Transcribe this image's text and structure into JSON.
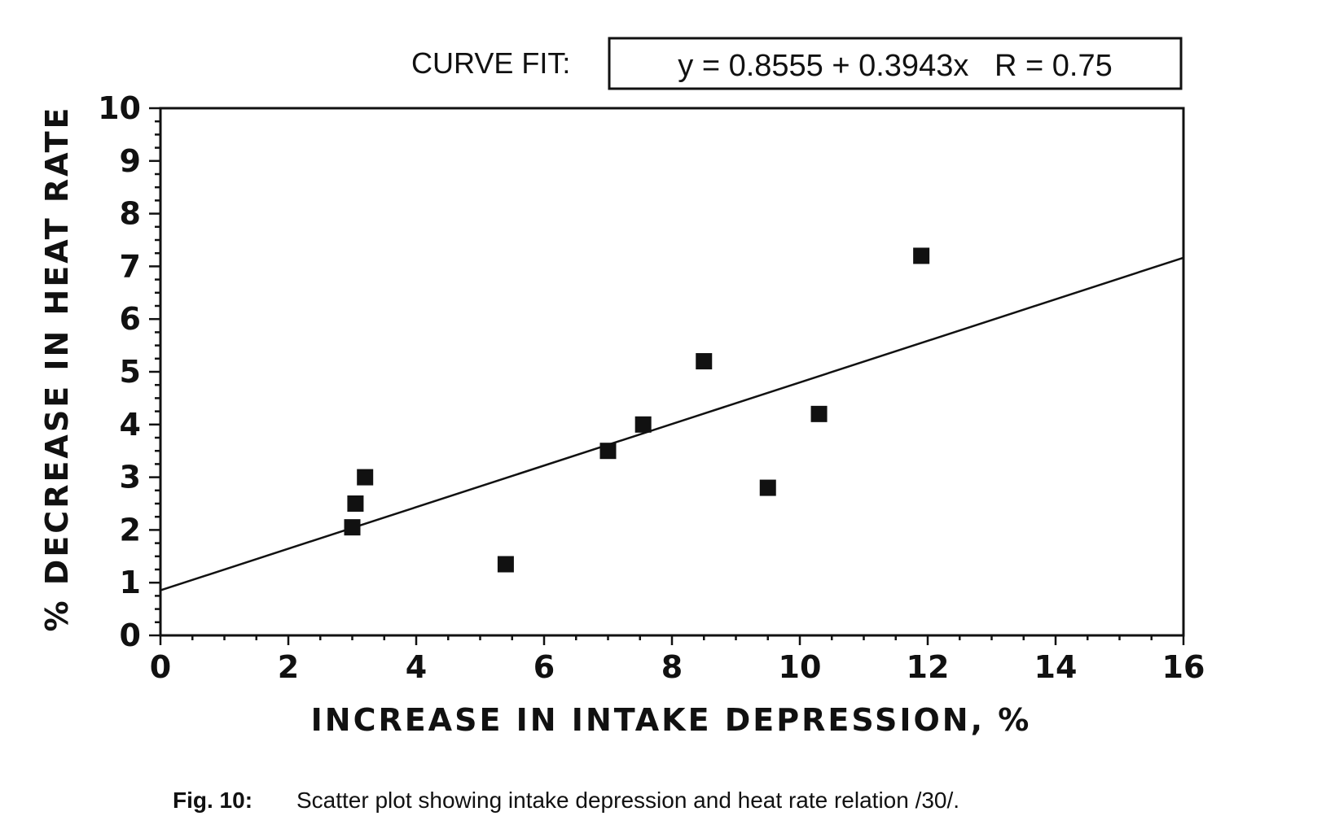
{
  "chart_data": {
    "type": "scatter",
    "title": "",
    "xlabel": "INCREASE IN INTAKE DEPRESSION, %",
    "ylabel": "% DECREASE IN HEAT RATE",
    "xlim": [
      0,
      16
    ],
    "ylim": [
      0,
      10
    ],
    "x_ticks": [
      0,
      2,
      4,
      6,
      8,
      10,
      12,
      14,
      16
    ],
    "y_ticks": [
      0,
      1,
      2,
      3,
      4,
      5,
      6,
      7,
      8,
      9,
      10
    ],
    "x_tick_labels": [
      "0",
      "2",
      "4",
      "6",
      "8",
      "10",
      "12",
      "14",
      "16"
    ],
    "y_tick_labels": [
      "0",
      "1",
      "2",
      "3",
      "4",
      "5",
      "6",
      "7",
      "8",
      "9",
      "10"
    ],
    "grid": false,
    "series": [
      {
        "name": "data",
        "marker": "square",
        "points": [
          {
            "x": 3.0,
            "y": 2.05
          },
          {
            "x": 3.05,
            "y": 2.5
          },
          {
            "x": 3.2,
            "y": 3.0
          },
          {
            "x": 5.4,
            "y": 1.35
          },
          {
            "x": 7.0,
            "y": 3.5
          },
          {
            "x": 7.55,
            "y": 4.0
          },
          {
            "x": 8.5,
            "y": 5.2
          },
          {
            "x": 9.5,
            "y": 2.8
          },
          {
            "x": 10.3,
            "y": 4.2
          },
          {
            "x": 11.9,
            "y": 7.2
          }
        ]
      }
    ],
    "fit": {
      "intercept": 0.8555,
      "slope": 0.3943,
      "x_range": [
        0,
        16
      ]
    },
    "curve_fit_label": "CURVE FIT:",
    "curve_fit_equation": "y = 0.8555 + 0.3943x   R = 0.75"
  },
  "caption": {
    "fig_label": "Fig. 10:",
    "text": "Scatter plot showing intake depression and heat rate relation /30/."
  }
}
